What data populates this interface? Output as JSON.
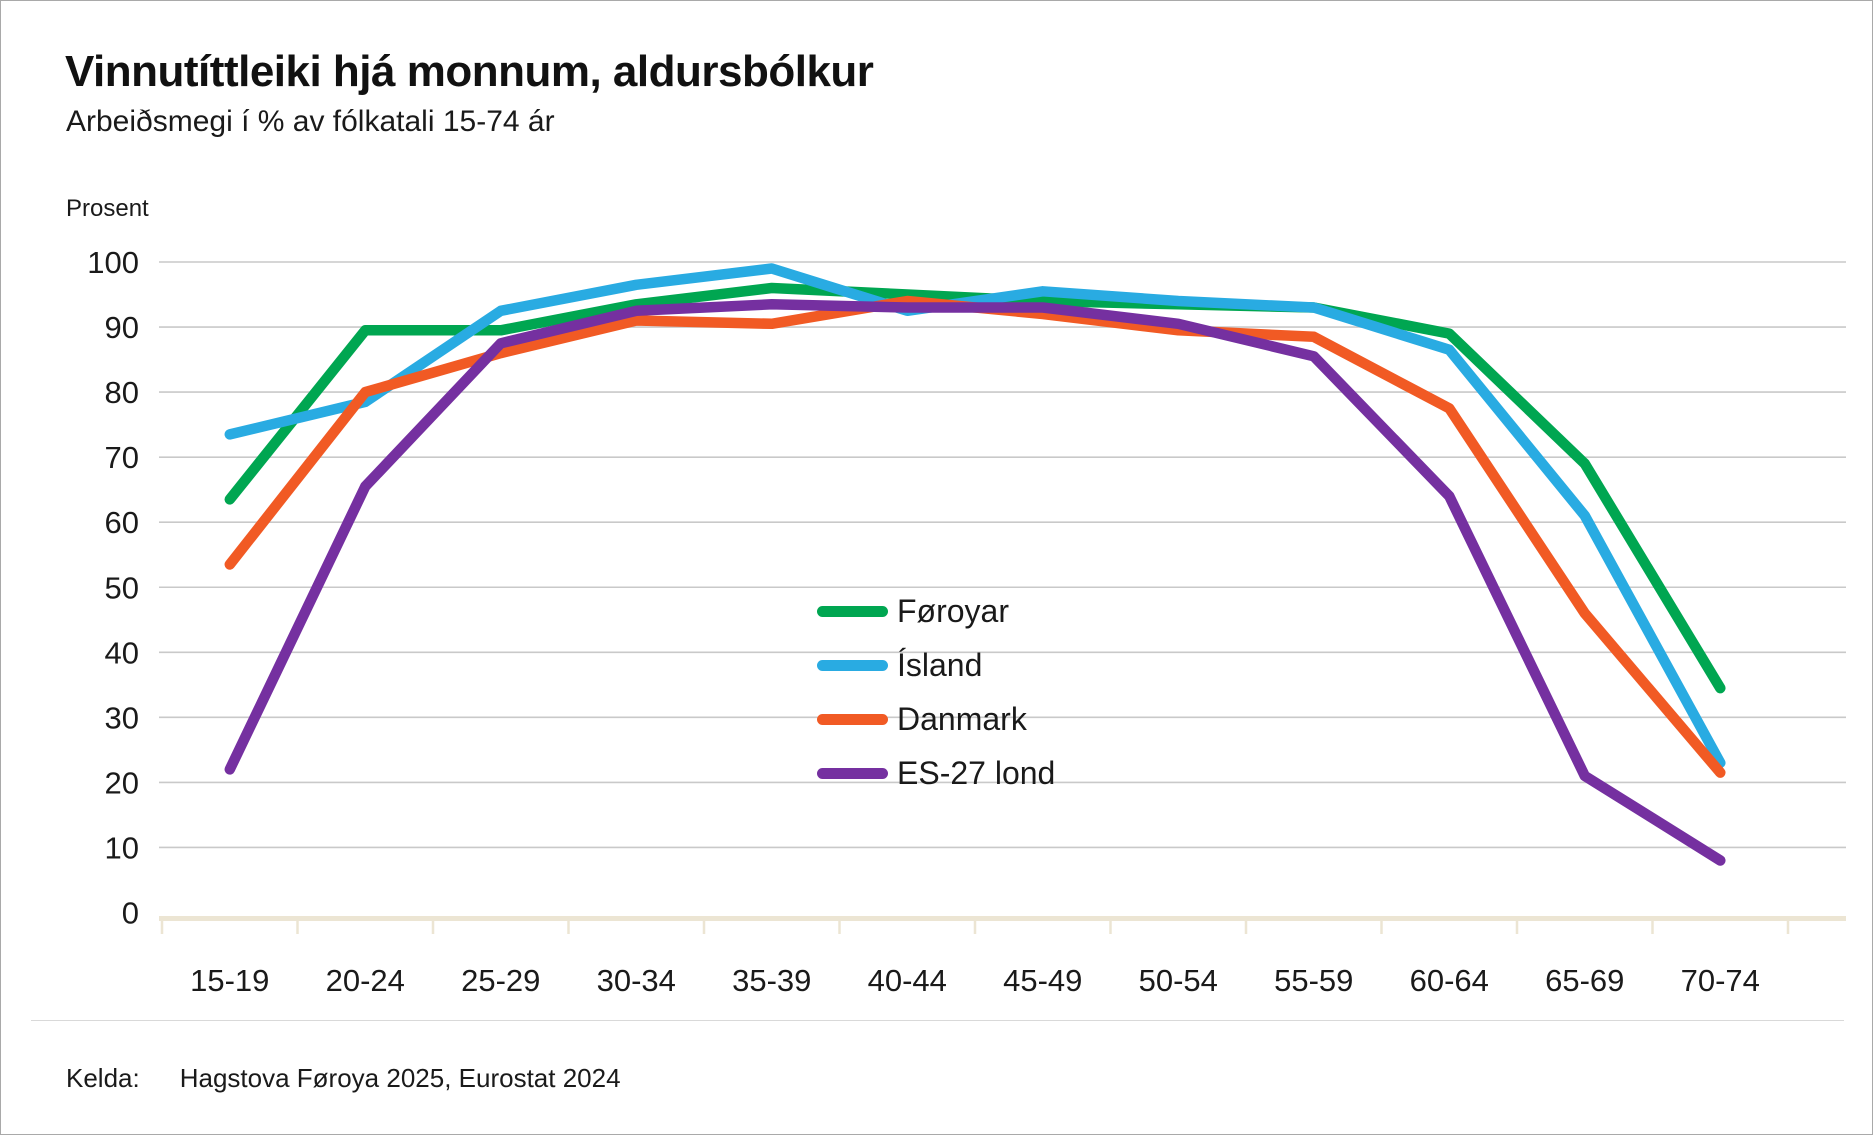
{
  "page": {
    "title": "Vinnutíttleiki hjá monnum, aldursbólkur",
    "subtitle": "Arbeiðsmegi í % av fólkatali 15-74 ár",
    "y_unit_label": "Prosent",
    "footer_label": "Kelda:",
    "footer_source": "Hagstova Føroya 2025, Eurostat 2024"
  },
  "colors": {
    "grid": "#c9c9c9",
    "axis_line": "#ece5d3",
    "text": "#1a1a1a",
    "foroyar_green": "#00a651",
    "island_blue": "#29abe2",
    "danmark_orange": "#f15a24",
    "es27_purple": "#7530a0"
  },
  "chart_data": {
    "type": "line",
    "title": "Vinnutíttleiki hjá monnum, aldursbólkur",
    "subtitle": "Arbeiðsmegi í % av fólkatali 15-74 ár",
    "ylabel": "Prosent",
    "xlabel": "",
    "ylim": [
      0,
      100
    ],
    "yticks": [
      0,
      10,
      20,
      30,
      40,
      50,
      60,
      70,
      80,
      90,
      100
    ],
    "grid": true,
    "legend_position": "inside-center",
    "categories": [
      "15-19",
      "20-24",
      "25-29",
      "30-34",
      "35-39",
      "40-44",
      "45-49",
      "50-54",
      "55-59",
      "60-64",
      "65-69",
      "70-74"
    ],
    "series": [
      {
        "name": "Føroyar",
        "color": "#00a651",
        "values": [
          63.5,
          89.5,
          89.5,
          93.5,
          96,
          95,
          94,
          93.5,
          93,
          89,
          69,
          34.5
        ]
      },
      {
        "name": "Ísland",
        "color": "#29abe2",
        "values": [
          73.5,
          78.5,
          92.5,
          96.5,
          99,
          92.5,
          95.5,
          94,
          93,
          86.5,
          61,
          23
        ]
      },
      {
        "name": "Danmark",
        "color": "#f15a24",
        "values": [
          53.5,
          80,
          86,
          91,
          90.5,
          94,
          92,
          89.5,
          88.5,
          77.5,
          46,
          21.5
        ]
      },
      {
        "name": "ES-27 lond",
        "color": "#7530a0",
        "values": [
          22,
          65.5,
          87.5,
          92.5,
          93.5,
          93,
          93,
          90.5,
          85.5,
          64,
          21,
          8
        ]
      }
    ],
    "source": "Kelda: Hagstova Føroya 2025, Eurostat 2024"
  }
}
